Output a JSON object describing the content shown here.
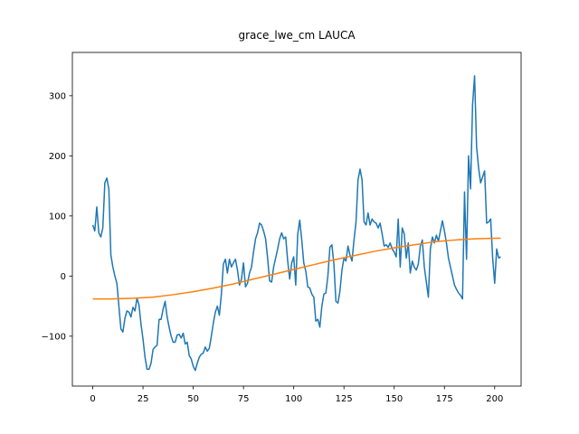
{
  "chart_data": {
    "type": "line",
    "title": "grace_lwe_cm LAUCA",
    "xlim": [
      -10.15,
      213.15
    ],
    "ylim": [
      -183,
      372
    ],
    "xticks": [
      0,
      25,
      50,
      75,
      100,
      125,
      150,
      175,
      200
    ],
    "yticks": [
      {
        "value": -100,
        "label": "−100"
      },
      0,
      100,
      200,
      300
    ],
    "grid": false,
    "series": [
      {
        "color": "#1f77b4",
        "x": [
          0,
          1,
          2,
          3,
          4,
          5,
          6,
          7,
          8,
          9,
          10,
          11,
          12,
          13,
          14,
          15,
          16,
          17,
          18,
          19,
          20,
          21,
          22,
          23,
          24,
          25,
          26,
          27,
          28,
          29,
          30,
          31,
          32,
          33,
          34,
          35,
          36,
          37,
          38,
          39,
          40,
          41,
          42,
          43,
          44,
          45,
          46,
          47,
          48,
          49,
          50,
          51,
          52,
          53,
          54,
          55,
          56,
          57,
          58,
          59,
          60,
          61,
          62,
          63,
          64,
          65,
          66,
          67,
          68,
          69,
          70,
          71,
          72,
          73,
          74,
          75,
          76,
          77,
          78,
          79,
          80,
          81,
          82,
          83,
          84,
          85,
          86,
          87,
          88,
          89,
          90,
          91,
          92,
          93,
          94,
          95,
          96,
          97,
          98,
          99,
          100,
          101,
          102,
          103,
          104,
          105,
          106,
          107,
          108,
          109,
          110,
          111,
          112,
          113,
          114,
          115,
          116,
          117,
          118,
          119,
          120,
          121,
          122,
          123,
          124,
          125,
          126,
          127,
          128,
          129,
          130,
          131,
          132,
          133,
          134,
          135,
          136,
          137,
          138,
          139,
          140,
          141,
          142,
          143,
          144,
          145,
          146,
          147,
          148,
          149,
          150,
          151,
          152,
          153,
          154,
          155,
          156,
          157,
          158,
          159,
          160,
          161,
          162,
          163,
          164,
          165,
          166,
          167,
          168,
          169,
          170,
          171,
          172,
          173,
          174,
          175,
          176,
          177,
          178,
          179,
          180,
          181,
          182,
          183,
          184,
          185,
          186,
          187,
          188,
          189,
          190,
          191,
          192,
          193,
          194,
          195,
          196,
          197,
          198,
          199,
          200,
          201,
          202,
          203
        ],
        "values": [
          85,
          75,
          115,
          72,
          65,
          80,
          155,
          163,
          145,
          35,
          15,
          0,
          -12,
          -50,
          -88,
          -93,
          -70,
          -58,
          -60,
          -68,
          -52,
          -58,
          -37,
          -48,
          -80,
          -105,
          -135,
          -155,
          -155,
          -145,
          -122,
          -118,
          -115,
          -72,
          -72,
          -55,
          -42,
          -68,
          -85,
          -100,
          -110,
          -110,
          -98,
          -97,
          -103,
          -95,
          -113,
          -110,
          -132,
          -138,
          -150,
          -157,
          -145,
          -135,
          -130,
          -128,
          -118,
          -125,
          -120,
          -100,
          -78,
          -60,
          -50,
          -65,
          -30,
          20,
          28,
          5,
          28,
          15,
          22,
          28,
          10,
          -15,
          -5,
          22,
          -18,
          -12,
          5,
          15,
          40,
          62,
          72,
          88,
          85,
          75,
          62,
          30,
          -8,
          -10,
          15,
          30,
          45,
          62,
          72,
          62,
          65,
          25,
          -5,
          22,
          32,
          -15,
          70,
          93,
          60,
          22,
          8,
          -18,
          -20,
          -30,
          -35,
          -75,
          -72,
          -85,
          -50,
          -30,
          -28,
          0,
          48,
          52,
          20,
          -42,
          -45,
          -25,
          10,
          30,
          25,
          50,
          35,
          25,
          60,
          90,
          160,
          178,
          160,
          90,
          85,
          105,
          85,
          95,
          90,
          88,
          80,
          88,
          70,
          50,
          52,
          48,
          55,
          45,
          40,
          32,
          95,
          15,
          80,
          70,
          30,
          55,
          5,
          25,
          15,
          10,
          20,
          50,
          60,
          15,
          -10,
          -35,
          45,
          65,
          55,
          68,
          58,
          75,
          92,
          75,
          55,
          30,
          15,
          0,
          -15,
          -22,
          -28,
          -32,
          -38,
          140,
          28,
          200,
          145,
          285,
          333,
          215,
          180,
          155,
          165,
          175,
          88,
          90,
          95,
          30,
          -12,
          45,
          30,
          32
        ]
      },
      {
        "color": "#ff7f0e",
        "x": [
          0,
          10,
          20,
          30,
          40,
          50,
          60,
          70,
          80,
          90,
          100,
          110,
          120,
          130,
          140,
          150,
          160,
          170,
          180,
          190,
          200,
          203
        ],
        "values": [
          -38,
          -38,
          -37,
          -35,
          -31,
          -26,
          -20,
          -13,
          -5,
          3,
          11,
          19,
          27,
          34,
          41,
          47,
          52,
          57,
          60,
          62,
          63,
          63
        ]
      }
    ]
  }
}
